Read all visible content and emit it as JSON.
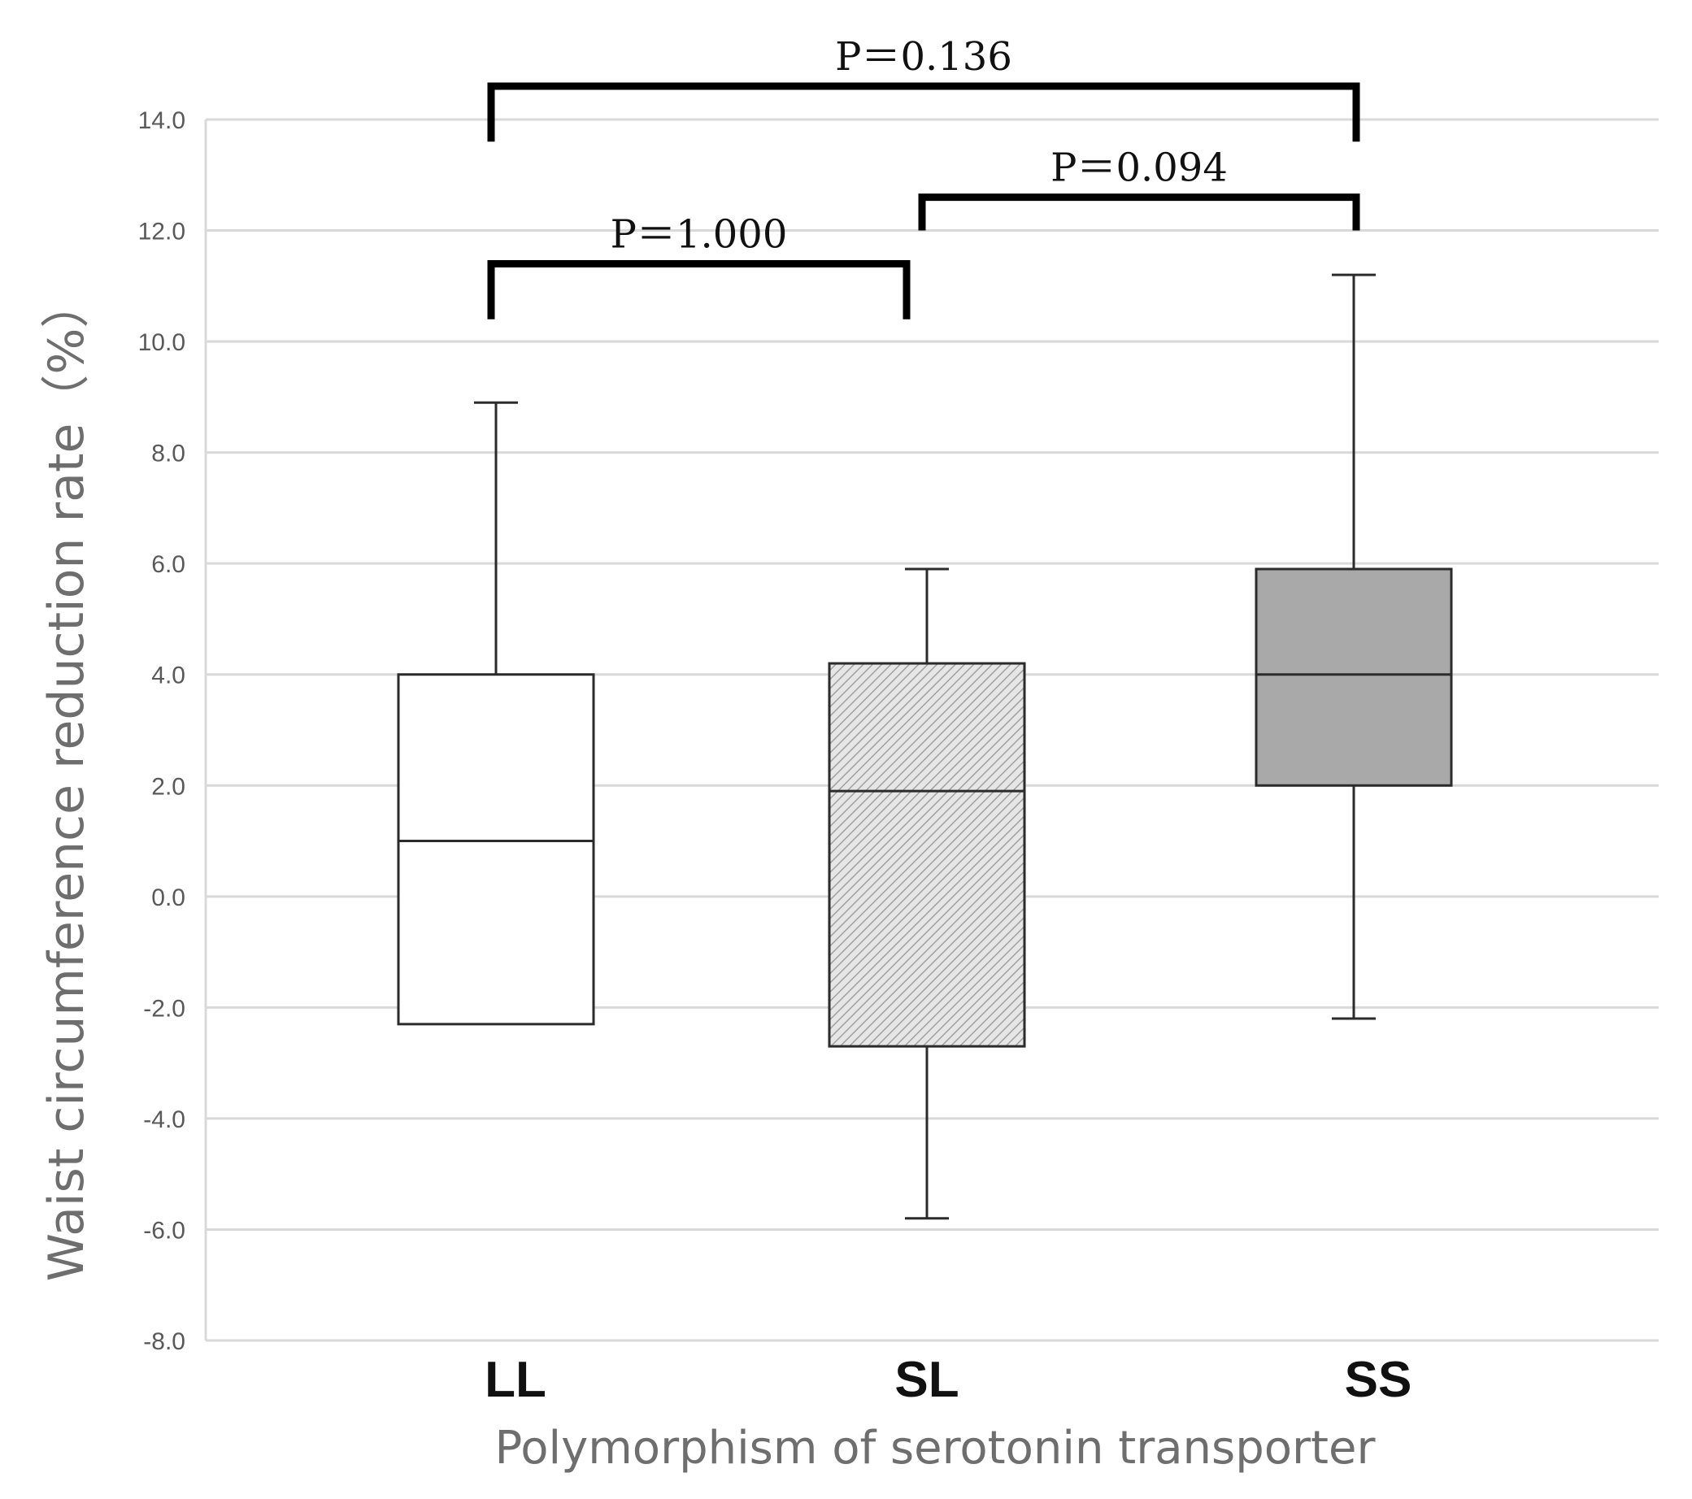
{
  "chart_data": {
    "type": "boxplot",
    "title": "",
    "xlabel": "Polymorphism of serotonin transporter",
    "ylabel": "Waist circumference reduction rate（%）",
    "ylim": [
      -8.0,
      14.0
    ],
    "ytick_step": 2.0,
    "yticks": [
      "14.0",
      "12.0",
      "10.0",
      "8.0",
      "6.0",
      "4.0",
      "2.0",
      "0.0",
      "-2.0",
      "-4.0",
      "-6.0",
      "-8.0"
    ],
    "grid": true,
    "categories": [
      "LL",
      "SL",
      "SS"
    ],
    "boxes": [
      {
        "name": "LL",
        "min": -2.3,
        "q1": -2.3,
        "median": 1.0,
        "q3": 4.0,
        "max": 8.9,
        "fill": "#ffffff",
        "pattern": "none"
      },
      {
        "name": "SL",
        "min": -5.8,
        "q1": -2.7,
        "median": 1.9,
        "q3": 4.2,
        "max": 5.9,
        "fill": "#e2e2e2",
        "pattern": "hatch"
      },
      {
        "name": "SS",
        "min": -2.2,
        "q1": 2.0,
        "median": 4.0,
        "q3": 5.9,
        "max": 11.2,
        "fill": "#a9a9a9",
        "pattern": "none"
      }
    ],
    "significance": [
      {
        "from": "LL",
        "to": "SL",
        "label": "P＝1.000",
        "leg_bottom": 10.4,
        "bar": 11.4
      },
      {
        "from": "SL",
        "to": "SS",
        "label": "P＝0.094",
        "leg_bottom": 12.0,
        "bar": 12.6
      },
      {
        "from": "LL",
        "to": "SS",
        "label": "P＝0.136",
        "leg_bottom": 13.6,
        "bar": 14.6
      }
    ],
    "colors": {
      "grid": "#d9d9d9",
      "axis": "#d9d9d9",
      "box_stroke": "#2b2b2b",
      "bracket": "#000000"
    }
  }
}
